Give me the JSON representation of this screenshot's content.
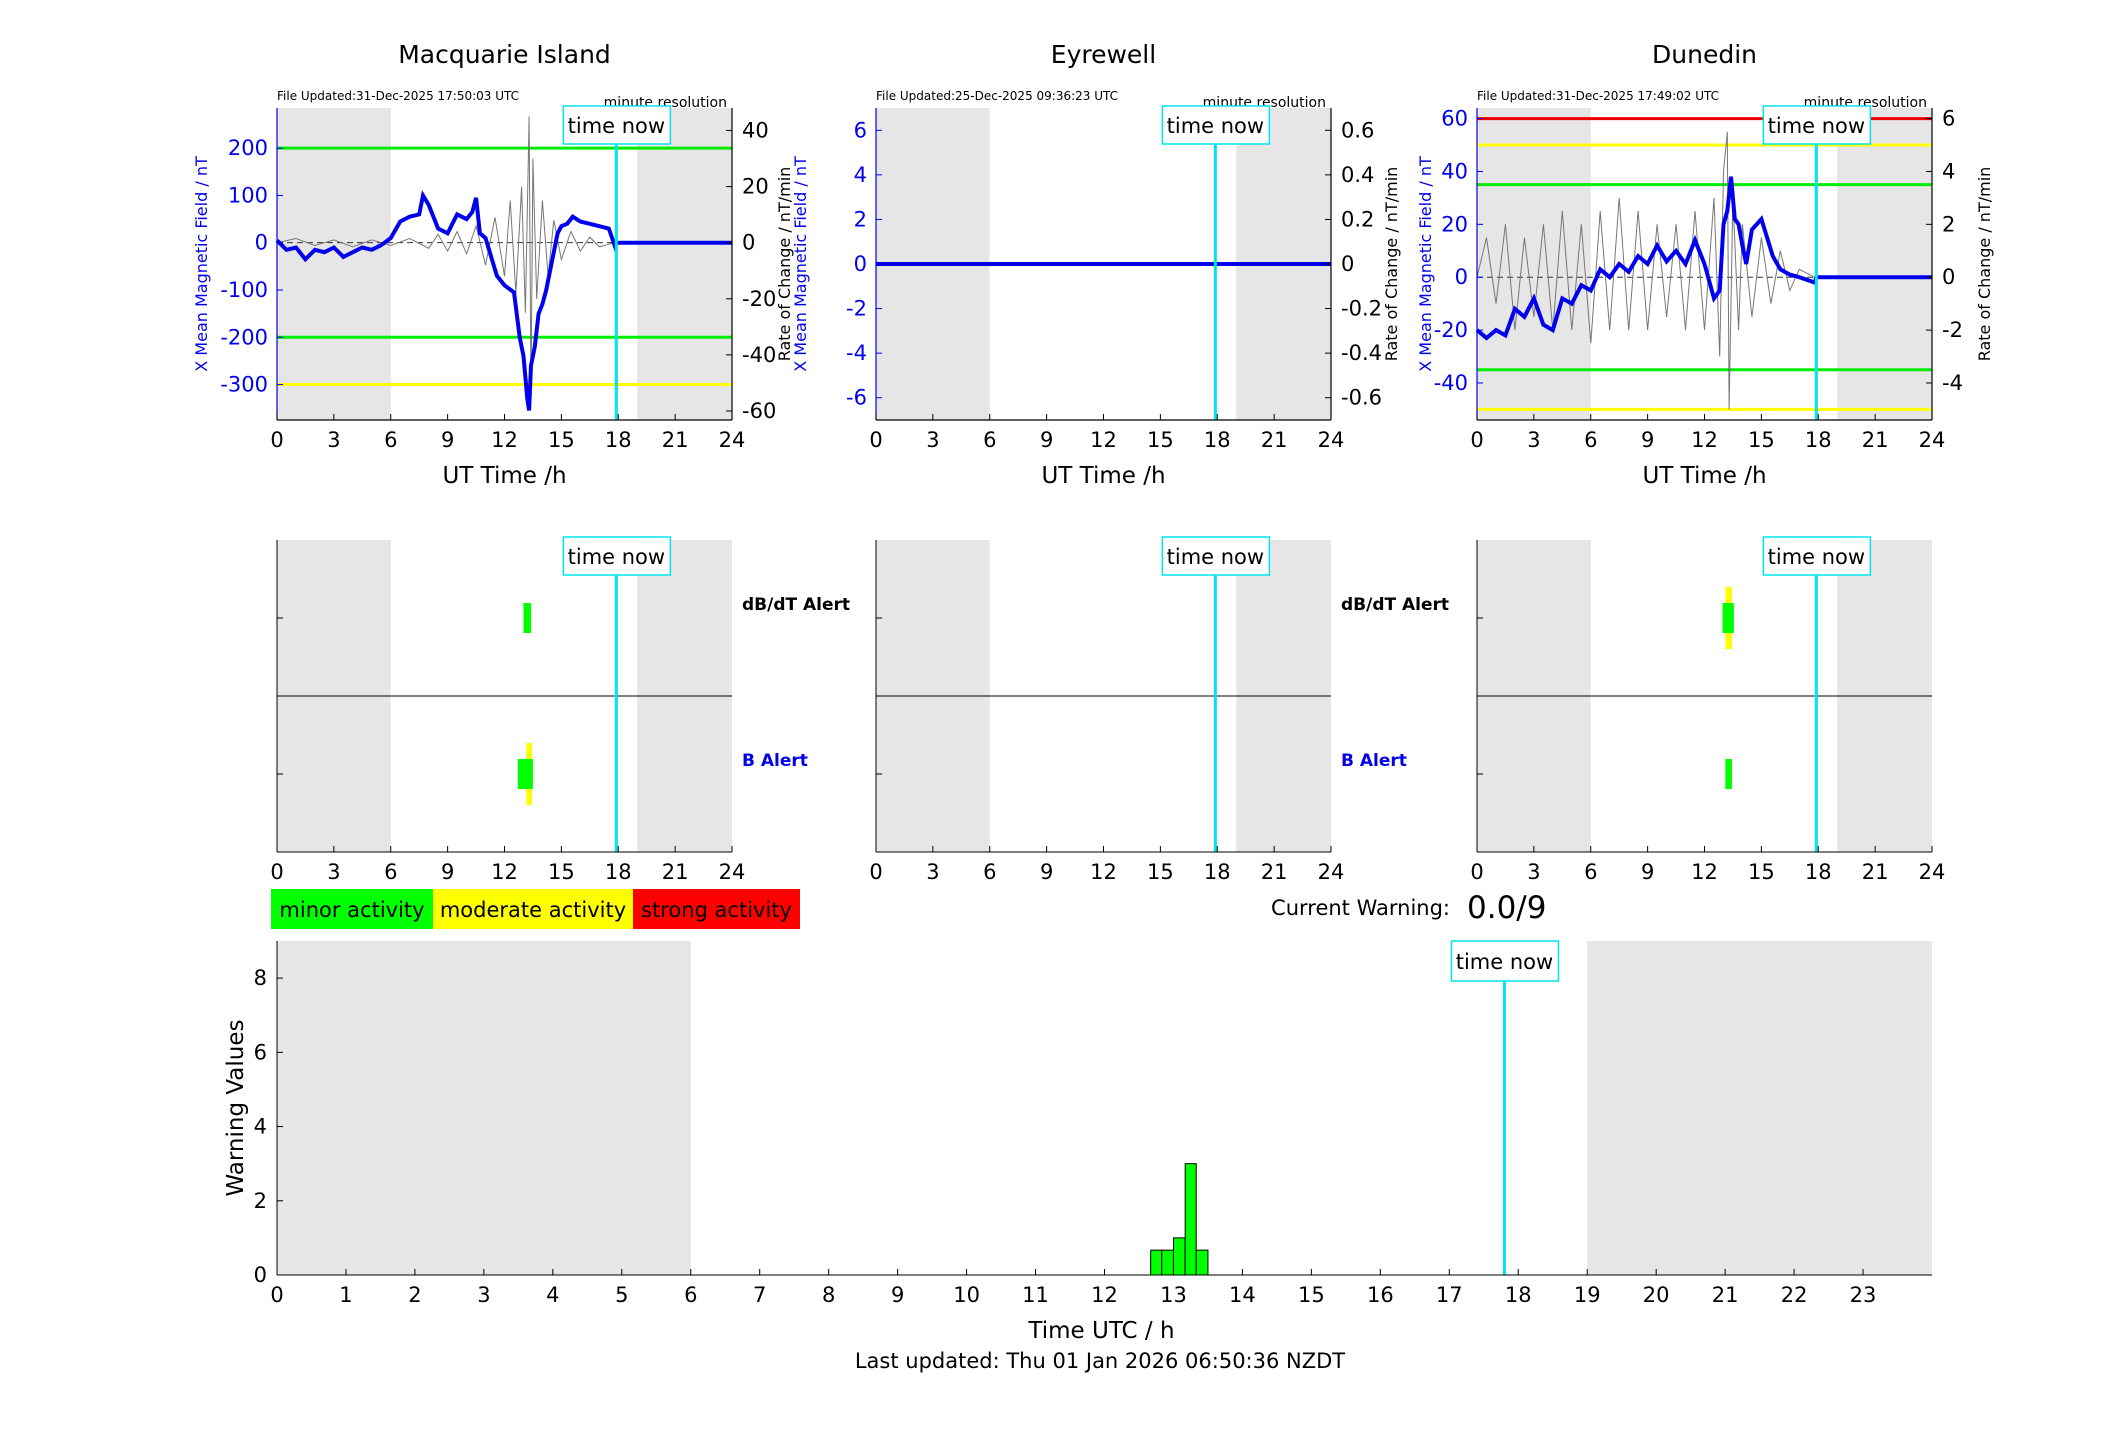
{
  "colors": {
    "b_field": "#0000ee",
    "rate": "#777777",
    "night": "#e6e6e6",
    "now": "#00e5ee",
    "minor": "#00ff00",
    "moderate": "#ffff00",
    "strong": "#ff0000",
    "alert_b_label": "#0000ee"
  },
  "station_panels": [
    {
      "title": "Macquarie Island",
      "file_updated": "File Updated:31-Dec-2025 17:50:03 UTC",
      "resolution": "minute resolution",
      "time_now_label": "time now",
      "xlabel": "UT Time /h",
      "ylabel_left": "X Mean Magnetic Field / nT",
      "ylabel_right": "Rate of Change / nT/min",
      "x_ticks": [
        "0",
        "3",
        "6",
        "9",
        "12",
        "15",
        "18",
        "21",
        "24"
      ],
      "ylim_left": [
        -375,
        285
      ],
      "ylim_right": [
        -63.2,
        48.0
      ],
      "y_ticks_left": [
        "-300",
        "-200",
        "-100",
        "0",
        "100",
        "200"
      ],
      "y_ticks_right": [
        "-60",
        "-40",
        "-20",
        "0",
        "20",
        "40"
      ],
      "night_bands": [
        [
          0,
          6
        ],
        [
          19,
          24
        ]
      ],
      "time_now": 17.9,
      "threshold_lines": [
        {
          "value": 200,
          "color": "#00ee00"
        },
        {
          "value": -200,
          "color": "#00ee00"
        },
        {
          "value": -300,
          "color": "#ffff00"
        }
      ],
      "b_series": [
        [
          0,
          5
        ],
        [
          0.5,
          -15
        ],
        [
          1,
          -10
        ],
        [
          1.5,
          -35
        ],
        [
          2,
          -15
        ],
        [
          2.5,
          -20
        ],
        [
          3,
          -10
        ],
        [
          3.5,
          -30
        ],
        [
          4,
          -20
        ],
        [
          4.5,
          -10
        ],
        [
          5,
          -15
        ],
        [
          5.5,
          -5
        ],
        [
          6,
          10
        ],
        [
          6.5,
          45
        ],
        [
          7,
          55
        ],
        [
          7.5,
          60
        ],
        [
          7.7,
          100
        ],
        [
          8,
          80
        ],
        [
          8.5,
          30
        ],
        [
          9,
          20
        ],
        [
          9.5,
          60
        ],
        [
          10,
          50
        ],
        [
          10.3,
          65
        ],
        [
          10.5,
          95
        ],
        [
          10.7,
          20
        ],
        [
          11,
          10
        ],
        [
          11.3,
          -30
        ],
        [
          11.6,
          -70
        ],
        [
          12,
          -90
        ],
        [
          12.5,
          -105
        ],
        [
          12.8,
          -200
        ],
        [
          13,
          -240
        ],
        [
          13.2,
          -330
        ],
        [
          13.3,
          -355
        ],
        [
          13.4,
          -260
        ],
        [
          13.6,
          -220
        ],
        [
          13.8,
          -150
        ],
        [
          14,
          -130
        ],
        [
          14.2,
          -100
        ],
        [
          14.5,
          -40
        ],
        [
          14.8,
          20
        ],
        [
          15,
          35
        ],
        [
          15.3,
          40
        ],
        [
          15.6,
          55
        ],
        [
          16,
          45
        ],
        [
          16.5,
          40
        ],
        [
          17,
          35
        ],
        [
          17.5,
          30
        ],
        [
          17.85,
          -10
        ],
        [
          17.9,
          0
        ],
        [
          24,
          0
        ]
      ],
      "rate_series": [
        [
          0,
          0
        ],
        [
          1,
          1.5
        ],
        [
          2,
          -1
        ],
        [
          3,
          1
        ],
        [
          4,
          -1.5
        ],
        [
          5,
          1
        ],
        [
          6,
          -1
        ],
        [
          7,
          1.5
        ],
        [
          8,
          -2
        ],
        [
          8.5,
          3
        ],
        [
          9,
          -3
        ],
        [
          9.5,
          4
        ],
        [
          10,
          -4
        ],
        [
          10.5,
          6
        ],
        [
          11,
          -8
        ],
        [
          11.5,
          9
        ],
        [
          12,
          -12
        ],
        [
          12.3,
          15
        ],
        [
          12.6,
          -18
        ],
        [
          12.9,
          20
        ],
        [
          13.1,
          -25
        ],
        [
          13.3,
          45
        ],
        [
          13.4,
          -55
        ],
        [
          13.5,
          30
        ],
        [
          13.7,
          -20
        ],
        [
          14,
          15
        ],
        [
          14.3,
          -12
        ],
        [
          14.6,
          8
        ],
        [
          15,
          -6
        ],
        [
          15.5,
          4
        ],
        [
          16,
          -3
        ],
        [
          16.5,
          2
        ],
        [
          17,
          -1.5
        ],
        [
          17.8,
          0
        ]
      ]
    },
    {
      "title": "Eyrewell",
      "file_updated": "File Updated:25-Dec-2025 09:36:23 UTC",
      "resolution": "minute resolution",
      "time_now_label": "time now",
      "xlabel": "UT Time /h",
      "ylabel_left": "X Mean Magnetic Field / nT",
      "ylabel_right": "Rate of Change / nT/min",
      "x_ticks": [
        "0",
        "3",
        "6",
        "9",
        "12",
        "15",
        "18",
        "21",
        "24"
      ],
      "ylim_left": [
        -7,
        7
      ],
      "ylim_right": [
        -0.7,
        0.7
      ],
      "y_ticks_left": [
        "-6",
        "-4",
        "-2",
        "0",
        "2",
        "4",
        "6"
      ],
      "y_ticks_right": [
        "-0.6",
        "-0.4",
        "-0.2",
        "0",
        "0.2",
        "0.4",
        "0.6"
      ],
      "night_bands": [
        [
          0,
          6
        ],
        [
          19,
          24
        ]
      ],
      "time_now": 17.9,
      "threshold_lines": [],
      "b_series": [
        [
          0,
          0
        ],
        [
          24,
          0
        ]
      ],
      "rate_series": [
        [
          0,
          0
        ],
        [
          24,
          0
        ]
      ]
    },
    {
      "title": "Dunedin",
      "file_updated": "File Updated:31-Dec-2025 17:49:02 UTC",
      "resolution": "minute resolution",
      "time_now_label": "time now",
      "xlabel": "UT Time /h",
      "ylabel_left": "X Mean Magnetic Field / nT",
      "ylabel_right": "Rate of Change / nT/min",
      "x_ticks": [
        "0",
        "3",
        "6",
        "9",
        "12",
        "15",
        "18",
        "21",
        "24"
      ],
      "ylim_left": [
        -54,
        64
      ],
      "ylim_right": [
        -5.4,
        6.4
      ],
      "y_ticks_left": [
        "-40",
        "-20",
        "0",
        "20",
        "40",
        "60"
      ],
      "y_ticks_right": [
        "-4",
        "-2",
        "0",
        "2",
        "4",
        "6"
      ],
      "night_bands": [
        [
          0,
          6
        ],
        [
          19,
          24
        ]
      ],
      "time_now": 17.9,
      "threshold_lines": [
        {
          "value": 60,
          "color": "#ee0000"
        },
        {
          "value": 50,
          "color": "#ffff00"
        },
        {
          "value": 35,
          "color": "#00ee00"
        },
        {
          "value": -35,
          "color": "#00ee00"
        },
        {
          "value": -50,
          "color": "#ffff00"
        }
      ],
      "b_series": [
        [
          0,
          -20
        ],
        [
          0.5,
          -23
        ],
        [
          1,
          -20
        ],
        [
          1.5,
          -22
        ],
        [
          2,
          -12
        ],
        [
          2.5,
          -15
        ],
        [
          3,
          -8
        ],
        [
          3.5,
          -18
        ],
        [
          4,
          -20
        ],
        [
          4.5,
          -8
        ],
        [
          5,
          -10
        ],
        [
          5.5,
          -3
        ],
        [
          6,
          -5
        ],
        [
          6.5,
          3
        ],
        [
          7,
          0
        ],
        [
          7.5,
          5
        ],
        [
          8,
          2
        ],
        [
          8.5,
          8
        ],
        [
          9,
          5
        ],
        [
          9.5,
          12
        ],
        [
          10,
          6
        ],
        [
          10.5,
          10
        ],
        [
          11,
          5
        ],
        [
          11.5,
          14
        ],
        [
          12,
          5
        ],
        [
          12.5,
          -8
        ],
        [
          12.8,
          -5
        ],
        [
          13,
          20
        ],
        [
          13.2,
          25
        ],
        [
          13.4,
          38
        ],
        [
          13.6,
          22
        ],
        [
          13.8,
          20
        ],
        [
          14,
          12
        ],
        [
          14.2,
          5
        ],
        [
          14.5,
          18
        ],
        [
          15,
          22
        ],
        [
          15.3,
          15
        ],
        [
          15.6,
          8
        ],
        [
          16,
          3
        ],
        [
          16.5,
          1
        ],
        [
          17,
          0
        ],
        [
          17.8,
          -2
        ],
        [
          17.9,
          0
        ],
        [
          24,
          0
        ]
      ],
      "rate_series": [
        [
          0,
          0
        ],
        [
          0.5,
          1.5
        ],
        [
          1,
          -1
        ],
        [
          1.5,
          2
        ],
        [
          2,
          -2
        ],
        [
          2.5,
          1.5
        ],
        [
          3,
          -1.5
        ],
        [
          3.5,
          2
        ],
        [
          4,
          -2
        ],
        [
          4.5,
          2.5
        ],
        [
          5,
          -2
        ],
        [
          5.5,
          2
        ],
        [
          6,
          -2.5
        ],
        [
          6.5,
          2.5
        ],
        [
          7,
          -2
        ],
        [
          7.5,
          3
        ],
        [
          8,
          -2
        ],
        [
          8.5,
          2.5
        ],
        [
          9,
          -2
        ],
        [
          9.5,
          2
        ],
        [
          10,
          -1.5
        ],
        [
          10.5,
          2
        ],
        [
          11,
          -2
        ],
        [
          11.5,
          2.5
        ],
        [
          12,
          -2
        ],
        [
          12.5,
          3
        ],
        [
          12.8,
          -3
        ],
        [
          13,
          4
        ],
        [
          13.2,
          5.5
        ],
        [
          13.3,
          -5
        ],
        [
          13.5,
          3
        ],
        [
          13.8,
          -2
        ],
        [
          14,
          2
        ],
        [
          14.5,
          -1.5
        ],
        [
          15,
          1.5
        ],
        [
          15.5,
          -1
        ],
        [
          16,
          1
        ],
        [
          16.5,
          -0.5
        ],
        [
          17,
          0.3
        ],
        [
          17.8,
          0
        ]
      ]
    }
  ],
  "alert_panels": [
    {
      "time_now_label": "time now",
      "x_ticks": [
        "0",
        "3",
        "6",
        "9",
        "12",
        "15",
        "18",
        "21",
        "24"
      ],
      "night_bands": [
        [
          0,
          6
        ],
        [
          19,
          24
        ]
      ],
      "time_now": 17.9,
      "row_labels": [
        "dB/dT Alert",
        "B Alert"
      ],
      "dbdt_marks": [
        {
          "start": 13.0,
          "end": 13.4,
          "level": "minor"
        }
      ],
      "b_marks": [
        {
          "start": 13.15,
          "end": 13.45,
          "level": "moderate"
        },
        {
          "start": 12.7,
          "end": 13.5,
          "level": "minor"
        }
      ]
    },
    {
      "time_now_label": "time now",
      "x_ticks": [
        "0",
        "3",
        "6",
        "9",
        "12",
        "15",
        "18",
        "21",
        "24"
      ],
      "night_bands": [
        [
          0,
          6
        ],
        [
          19,
          24
        ]
      ],
      "time_now": 17.9,
      "row_labels": [
        "dB/dT Alert",
        "B Alert"
      ],
      "dbdt_marks": [],
      "b_marks": []
    },
    {
      "time_now_label": "time now",
      "x_ticks": [
        "0",
        "3",
        "6",
        "9",
        "12",
        "15",
        "18",
        "21",
        "24"
      ],
      "night_bands": [
        [
          0,
          6
        ],
        [
          19,
          24
        ]
      ],
      "time_now": 17.9,
      "row_labels": [],
      "dbdt_marks": [
        {
          "start": 13.1,
          "end": 13.45,
          "level": "moderate"
        },
        {
          "start": 12.95,
          "end": 13.55,
          "level": "minor"
        }
      ],
      "b_marks": [
        {
          "start": 13.1,
          "end": 13.45,
          "level": "minor"
        }
      ]
    }
  ],
  "legend": [
    {
      "label": "minor activity",
      "color": "#00ff00"
    },
    {
      "label": "moderate activity",
      "color": "#ffff00"
    },
    {
      "label": "strong activity",
      "color": "#ff0000"
    }
  ],
  "current_warning": {
    "label": "Current Warning:",
    "value": "0.0/9"
  },
  "chart_data": {
    "type": "bar",
    "xlabel": "Time UTC / h",
    "ylabel": "Warning Values",
    "xlim": [
      0,
      24
    ],
    "ylim": [
      0,
      9
    ],
    "x_ticks": [
      "0",
      "1",
      "2",
      "3",
      "4",
      "5",
      "6",
      "7",
      "8",
      "9",
      "10",
      "11",
      "12",
      "13",
      "14",
      "15",
      "16",
      "17",
      "18",
      "19",
      "20",
      "21",
      "22",
      "23"
    ],
    "y_ticks": [
      "0",
      "2",
      "4",
      "6",
      "8"
    ],
    "night_bands": [
      [
        0,
        6
      ],
      [
        19,
        24
      ]
    ],
    "time_now": 17.8,
    "time_now_label": "time now",
    "bars": [
      {
        "start": 12.67,
        "end": 12.83,
        "value": 0.67
      },
      {
        "start": 12.83,
        "end": 13.0,
        "value": 0.67
      },
      {
        "start": 13.0,
        "end": 13.17,
        "value": 1.0
      },
      {
        "start": 13.17,
        "end": 13.33,
        "value": 3.0
      },
      {
        "start": 13.33,
        "end": 13.5,
        "value": 0.67
      }
    ]
  },
  "footer": "Last updated: Thu 01 Jan 2026 06:50:36 NZDT"
}
